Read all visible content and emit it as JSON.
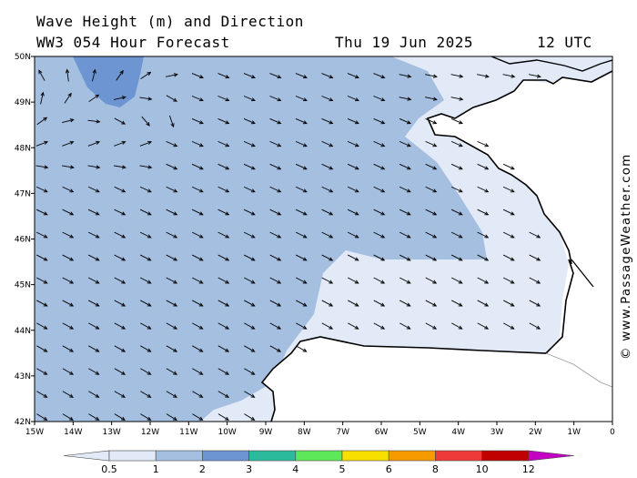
{
  "header": {
    "title": "Wave Height (m) and Direction",
    "model": "WW3 054 Hour Forecast",
    "date": "Thu 19 Jun 2025",
    "time": "12 UTC"
  },
  "credit": "© www.PassageWeather.com",
  "axes": {
    "lon_labels": [
      "15W",
      "14W",
      "13W",
      "12W",
      "11W",
      "10W",
      "9W",
      "8W",
      "7W",
      "6W",
      "5W",
      "4W",
      "3W",
      "2W",
      "1W",
      "0"
    ],
    "lat_labels": [
      "50N",
      "49N",
      "48N",
      "47N",
      "46N",
      "45N",
      "44N",
      "43N",
      "42N"
    ]
  },
  "legend": {
    "ticks": [
      "0.5",
      "1",
      "2",
      "3",
      "4",
      "5",
      "6",
      "8",
      "10",
      "12"
    ],
    "colors": [
      "#e2eaf7",
      "#a5bfe1",
      "#6d95d1",
      "#2cba9c",
      "#5de85a",
      "#f7e000",
      "#f59b00",
      "#ef3a3a",
      "#c00000",
      "#c400c4"
    ]
  },
  "field_colors": {
    "low": "#e2eaf7",
    "mid": "#a5bfe1",
    "high": "#6d95d1",
    "land": "#ffffff"
  },
  "wave_direction": "waves mostly heading east-southeast toward the Bay of Biscay; north-northwest in the northwest corner"
}
